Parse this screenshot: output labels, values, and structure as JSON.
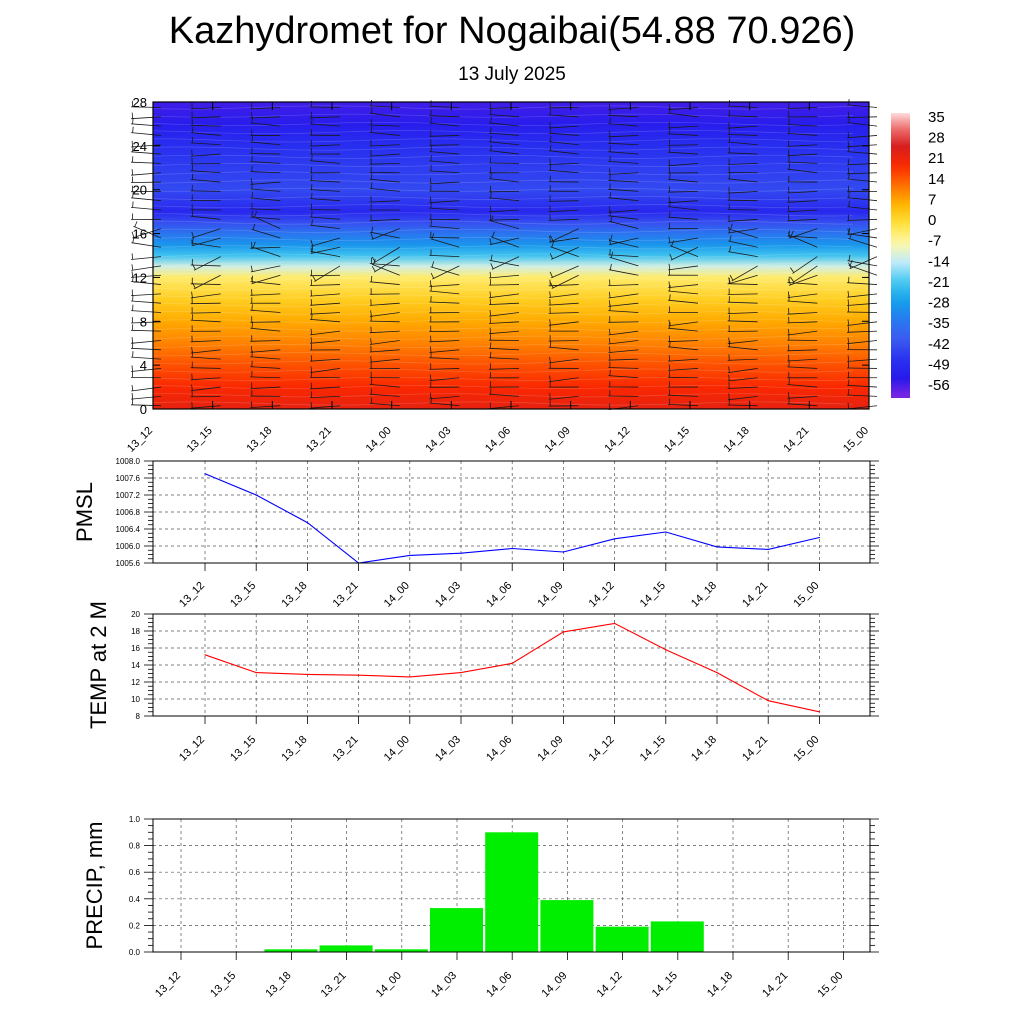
{
  "figure": {
    "title": "Kazhydromet for Nogaibai(54.88 70.926)",
    "subtitle": "13 July 2025"
  },
  "chart_data": [
    {
      "type": "heatmap",
      "name": "temperature-cross-section",
      "x_categories": [
        "13_12",
        "13_15",
        "13_18",
        "13_21",
        "14_00",
        "14_03",
        "14_06",
        "14_09",
        "14_12",
        "14_15",
        "14_18",
        "14_21",
        "15_00"
      ],
      "y_ticks": [
        "0",
        "4",
        "8",
        "12",
        "16",
        "20",
        "24",
        "28"
      ],
      "ylim": [
        0,
        28
      ],
      "colorbar_ticks": [
        "35",
        "28",
        "21",
        "14",
        "7",
        "0",
        "-7",
        "-14",
        "-21",
        "-28",
        "-35",
        "-42",
        "-49",
        "-56"
      ],
      "colorbar_range": [
        -63,
        40
      ],
      "profile": [
        {
          "level": 0,
          "value": 25
        },
        {
          "level": 2,
          "value": 21
        },
        {
          "level": 4,
          "value": 17
        },
        {
          "level": 6,
          "value": 12
        },
        {
          "level": 8,
          "value": 8
        },
        {
          "level": 10,
          "value": 3
        },
        {
          "level": 12,
          "value": -3
        },
        {
          "level": 13,
          "value": -12
        },
        {
          "level": 14,
          "value": -22
        },
        {
          "level": 15,
          "value": -30
        },
        {
          "level": 16,
          "value": -36
        },
        {
          "level": 17,
          "value": -44
        },
        {
          "level": 18,
          "value": -52
        },
        {
          "level": 20,
          "value": -45
        },
        {
          "level": 22,
          "value": -47
        },
        {
          "level": 24,
          "value": -50
        },
        {
          "level": 26,
          "value": -55
        },
        {
          "level": 28,
          "value": -58
        }
      ],
      "wind_barbs": "true",
      "colors": {
        "warm": "#ff3000",
        "cold": "#1030ff"
      }
    },
    {
      "type": "line",
      "name": "pmsl",
      "ylabel": "PMSL",
      "categories": [
        "13_12",
        "13_15",
        "13_18",
        "13_21",
        "14_00",
        "14_03",
        "14_06",
        "14_09",
        "14_12",
        "14_15",
        "14_18",
        "14_21",
        "15_00"
      ],
      "values": [
        1007.7,
        1007.2,
        1006.55,
        1005.6,
        1005.78,
        1005.83,
        1005.94,
        1005.86,
        1006.17,
        1006.33,
        1005.98,
        1005.92,
        1006.2
      ],
      "ylim": [
        1005.6,
        1008.0
      ],
      "y_ticks": [
        "1005.6",
        "1006.0",
        "1006.4",
        "1006.8",
        "1007.2",
        "1007.6",
        "1008.0"
      ],
      "grid": "dashed",
      "color": "#0000ff"
    },
    {
      "type": "line",
      "name": "temp",
      "ylabel": "TEMP at 2 M",
      "categories": [
        "13_12",
        "13_15",
        "13_18",
        "13_21",
        "14_00",
        "14_03",
        "14_06",
        "14_09",
        "14_12",
        "14_15",
        "14_18",
        "14_21",
        "15_00"
      ],
      "values": [
        15.2,
        13.1,
        12.9,
        12.8,
        12.6,
        13.1,
        14.2,
        17.9,
        18.9,
        15.8,
        13.1,
        9.8,
        8.5
      ],
      "ylim": [
        8,
        20
      ],
      "y_ticks": [
        "8",
        "10",
        "12",
        "14",
        "16",
        "18",
        "20"
      ],
      "grid": "dashed",
      "color": "#ff0000"
    },
    {
      "type": "bar",
      "name": "precip",
      "ylabel": "PRECIP, mm",
      "categories": [
        "13_12",
        "13_15",
        "13_18",
        "13_21",
        "14_00",
        "14_03",
        "14_06",
        "14_09",
        "14_12",
        "14_15",
        "14_18",
        "14_21",
        "15_00"
      ],
      "values": [
        0,
        0,
        0.02,
        0.05,
        0.02,
        0.33,
        0.9,
        0.39,
        0.19,
        0.23,
        0,
        0,
        0
      ],
      "ylim": [
        0,
        1.0
      ],
      "y_ticks": [
        "0.0",
        "0.2",
        "0.4",
        "0.6",
        "0.8",
        "1.0"
      ],
      "grid": "dashed",
      "color": "#00ee00"
    }
  ]
}
